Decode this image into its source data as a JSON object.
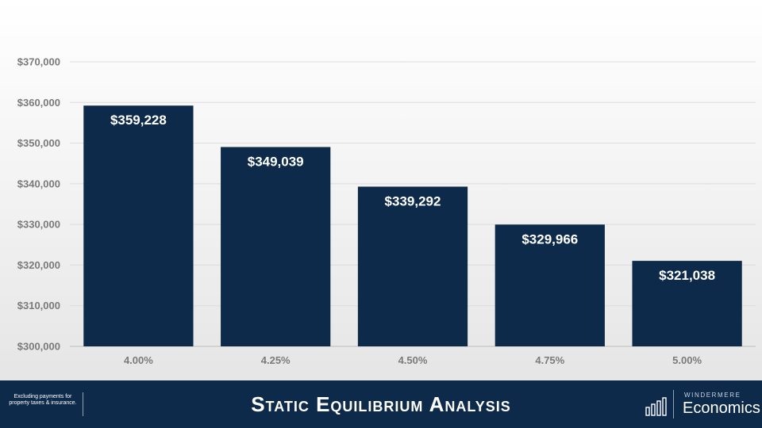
{
  "chart_data": {
    "type": "bar",
    "title": "Static Equilibrium Analysis",
    "xlabel": "",
    "ylabel": "",
    "categories": [
      "4.00%",
      "4.25%",
      "4.50%",
      "4.75%",
      "5.00%"
    ],
    "values": [
      359228,
      349039,
      339292,
      329966,
      321038
    ],
    "data_labels": [
      "$359,228",
      "$349,039",
      "$339,292",
      "$329,966",
      "$321,038"
    ],
    "ylim": [
      300000,
      370000
    ],
    "yticks": [
      300000,
      310000,
      320000,
      330000,
      340000,
      350000,
      360000,
      370000
    ],
    "ytick_labels": [
      "$300,000",
      "$310,000",
      "$320,000",
      "$330,000",
      "$340,000",
      "$350,000",
      "$360,000",
      "$370,000"
    ],
    "grid": true,
    "legend": "none",
    "bar_color": "#0d2a4a"
  },
  "footer": {
    "note": "Excluding payments for property taxes & insurance.",
    "title": "Static Equilibrium Analysis",
    "logo_top": "WINDERMERE",
    "logo_bottom": "Economics",
    "logo_icon": "bar-chart-logo-icon"
  }
}
